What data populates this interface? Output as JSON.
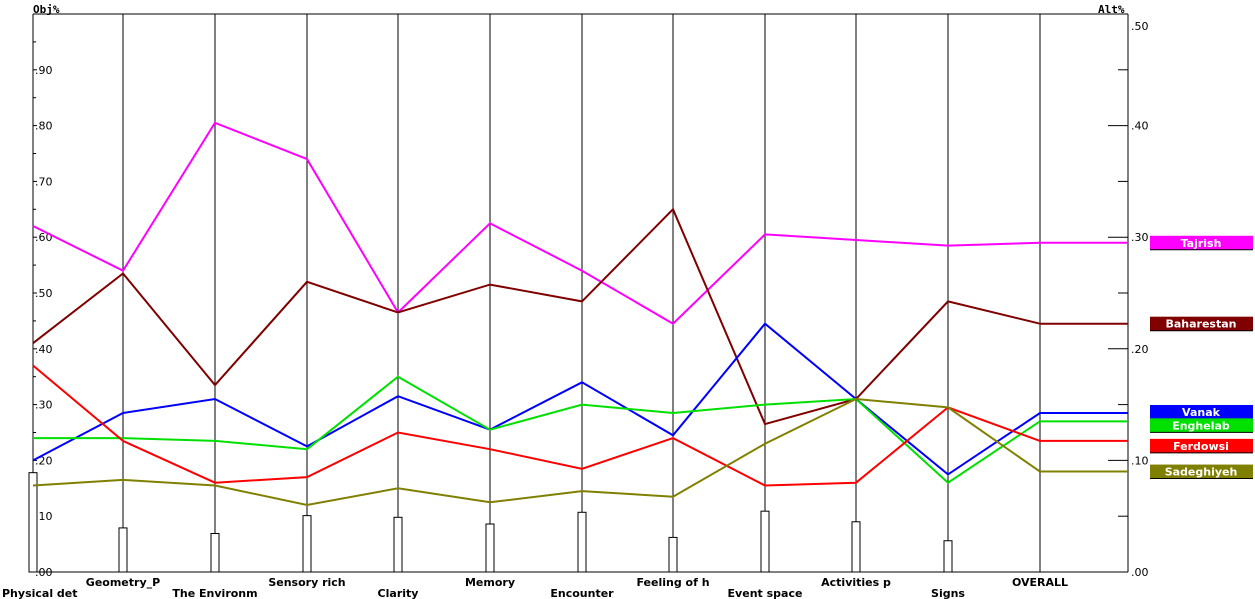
{
  "chart_data": {
    "type": "line",
    "left_axis_title": "Obj%",
    "right_axis_title": "Alt%",
    "left_ticks": [
      ".00",
      ".10",
      ".20",
      ".30",
      ".40",
      ".50",
      ".60",
      ".70",
      ".80",
      ".90"
    ],
    "right_ticks": [
      ".00",
      ".10",
      ".20",
      ".30",
      ".40",
      ".50"
    ],
    "left_ylim": [
      0,
      1.0
    ],
    "right_ylim": [
      0,
      0.5
    ],
    "categories": [
      "Physical det",
      "Geometry_P",
      "The Environm",
      "Sensory rich",
      "Clarity",
      "Memory",
      "Encounter",
      "Feeling of h",
      "Event space",
      "Activities p",
      "Signs",
      "OVERALL"
    ],
    "objective_weights": [
      0.178,
      0.079,
      0.069,
      0.101,
      0.098,
      0.086,
      0.107,
      0.062,
      0.109,
      0.09,
      0.056
    ],
    "series": [
      {
        "name": "Tajrish",
        "color": "#ff00ff",
        "values": [
          0.62,
          0.54,
          0.805,
          0.74,
          0.465,
          0.625,
          0.54,
          0.445,
          0.605,
          0.595,
          0.585,
          0.59
        ]
      },
      {
        "name": "Baharestan",
        "color": "#800000",
        "values": [
          0.41,
          0.535,
          0.335,
          0.52,
          0.465,
          0.515,
          0.485,
          0.65,
          0.265,
          0.31,
          0.485,
          0.445
        ]
      },
      {
        "name": "Vanak",
        "color": "#0000ff",
        "values": [
          0.2,
          0.285,
          0.31,
          0.225,
          0.315,
          0.255,
          0.34,
          0.245,
          0.445,
          0.31,
          0.175,
          0.285
        ]
      },
      {
        "name": "Enghelab",
        "color": "#00e000",
        "values": [
          0.24,
          0.24,
          0.235,
          0.22,
          0.35,
          0.255,
          0.3,
          0.285,
          0.3,
          0.31,
          0.16,
          0.27
        ]
      },
      {
        "name": "Ferdowsi",
        "color": "#ff0000",
        "values": [
          0.37,
          0.235,
          0.16,
          0.17,
          0.25,
          0.22,
          0.185,
          0.24,
          0.155,
          0.16,
          0.295,
          0.235
        ]
      },
      {
        "name": "Sadeghiyeh",
        "color": "#808000",
        "values": [
          0.155,
          0.165,
          0.155,
          0.12,
          0.15,
          0.125,
          0.145,
          0.135,
          0.23,
          0.31,
          0.295,
          0.18
        ]
      }
    ]
  }
}
